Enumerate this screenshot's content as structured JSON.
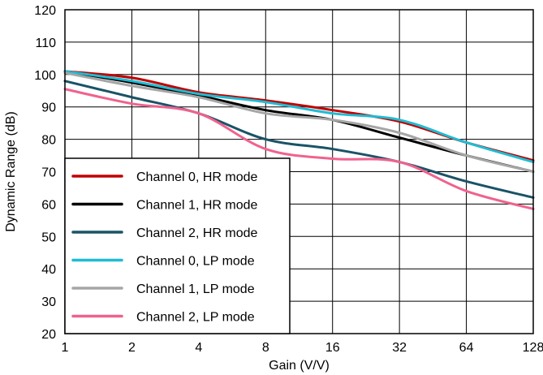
{
  "chart_data": {
    "type": "line",
    "title": "",
    "xlabel": "Gain (V/V)",
    "ylabel": "Dynamic Range (dB)",
    "x_scale": "log2",
    "x": [
      1,
      2,
      4,
      8,
      16,
      32,
      64,
      128
    ],
    "x_tick_labels": [
      "1",
      "2",
      "4",
      "8",
      "16",
      "32",
      "64",
      "128"
    ],
    "ylim": [
      20,
      120
    ],
    "y_ticks": [
      20,
      30,
      40,
      50,
      60,
      70,
      80,
      90,
      100,
      110,
      120
    ],
    "y_tick_labels": [
      "20",
      "30",
      "40",
      "50",
      "60",
      "70",
      "80",
      "90",
      "100",
      "110",
      "120"
    ],
    "grid": true,
    "legend_position": "bottom-left",
    "series": [
      {
        "name": "Channel 0, HR mode",
        "color": "#c00000",
        "values": [
          101,
          99,
          94.5,
          92,
          89,
          85.5,
          79,
          73.5
        ]
      },
      {
        "name": "Channel 1, HR mode",
        "color": "#000000",
        "values": [
          101,
          97.5,
          93.5,
          89,
          86,
          80.5,
          75,
          70
        ]
      },
      {
        "name": "Channel 2, HR mode",
        "color": "#1a5366",
        "values": [
          98,
          93,
          88,
          80,
          77,
          73,
          67,
          62
        ]
      },
      {
        "name": "Channel 0, LP mode",
        "color": "#1fbcd2",
        "values": [
          101,
          98,
          94,
          91.5,
          88,
          86,
          79,
          73
        ]
      },
      {
        "name": "Channel 1, LP mode",
        "color": "#a6a6a6",
        "values": [
          100.5,
          96.5,
          93,
          88,
          86,
          82,
          75,
          70
        ]
      },
      {
        "name": "Channel 2, LP mode",
        "color": "#f0628e",
        "values": [
          95.5,
          91,
          88,
          77,
          74,
          73,
          64,
          58.5
        ]
      }
    ]
  }
}
